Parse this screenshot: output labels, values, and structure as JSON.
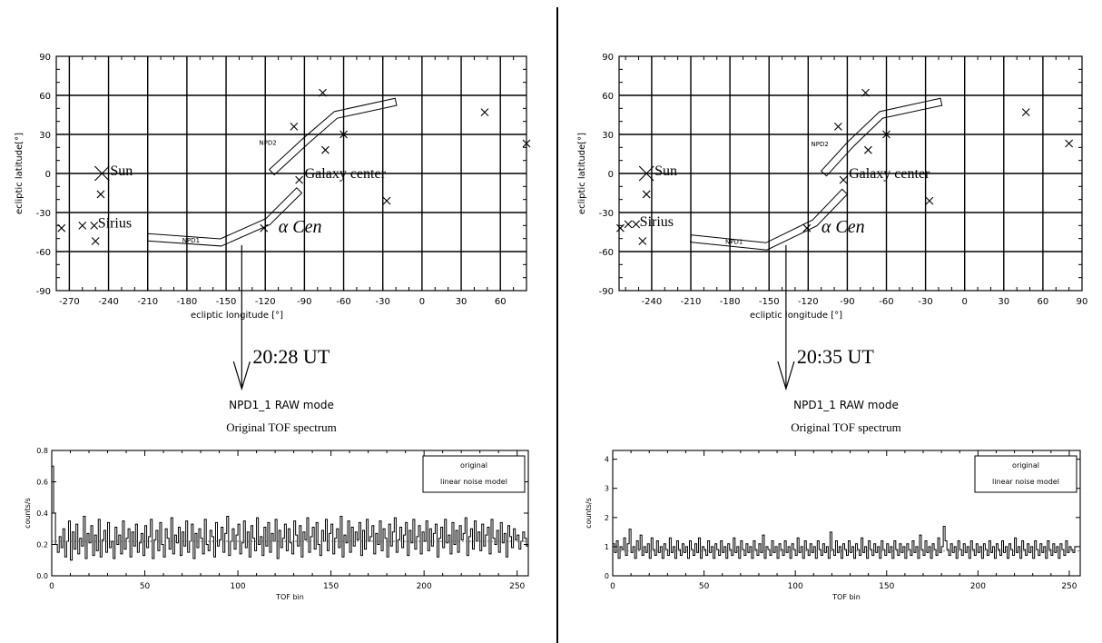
{
  "chart_data": [
    {
      "type": "scatter",
      "panel": "left",
      "xlabel": "ecliptic longitude [°]",
      "ylabel": "ecliptic latitude[°]",
      "xlim": [
        -280,
        80
      ],
      "ylim": [
        -90,
        90
      ],
      "xticks": [
        "-270",
        "-240",
        "-210",
        "-180",
        "-150",
        "-120",
        "-90",
        "-60",
        "-30",
        "0",
        "30",
        "60"
      ],
      "yticks": [
        "90",
        "60",
        "30",
        "0",
        "-30",
        "-60",
        "-90"
      ],
      "grid": true,
      "sun": {
        "label": "Sun",
        "x": -245,
        "y": 0
      },
      "sirius": {
        "label": "Sirius",
        "x": -251,
        "y": -40
      },
      "galaxy": {
        "label": "Galaxy center",
        "x": -94,
        "y": -5
      },
      "acen": {
        "label": "α Cen",
        "x": -121,
        "y": -42
      },
      "stars": [
        {
          "x": -246,
          "y": -16
        },
        {
          "x": -250,
          "y": -52
        },
        {
          "x": -260,
          "y": -40
        },
        {
          "x": -276,
          "y": -42
        },
        {
          "x": -98,
          "y": 36
        },
        {
          "x": -76,
          "y": 62
        },
        {
          "x": -74,
          "y": 18
        },
        {
          "x": -60,
          "y": 30
        },
        {
          "x": -27,
          "y": -21
        },
        {
          "x": 48,
          "y": 47
        },
        {
          "x": 80,
          "y": 23
        }
      ],
      "npd1": {
        "label": "NPD1",
        "line_x": -138,
        "path": [
          [
            -210,
            -49
          ],
          [
            -154,
            -53
          ],
          [
            -118,
            -37
          ],
          [
            -94,
            -13
          ]
        ]
      },
      "npd2": {
        "label": "NPD2",
        "path": [
          [
            -115,
            1
          ],
          [
            -89,
            25
          ],
          [
            -66,
            45
          ],
          [
            -20,
            55
          ]
        ]
      },
      "time_label": "20:28 UT"
    },
    {
      "type": "scatter",
      "panel": "right",
      "xlabel": "ecliptic longitude [°]",
      "ylabel": "ecliptic latitude[°]",
      "xlim": [
        -265,
        90
      ],
      "ylim": [
        -90,
        90
      ],
      "xticks": [
        "-240",
        "-210",
        "-180",
        "-150",
        "-120",
        "-90",
        "-60",
        "-30",
        "0",
        "30",
        "60",
        "90"
      ],
      "yticks": [
        "90",
        "60",
        "30",
        "0",
        "-30",
        "-60",
        "-90"
      ],
      "grid": true,
      "sun": {
        "label": "Sun",
        "x": -244,
        "y": 0
      },
      "sirius": {
        "label": "Sirius",
        "x": -252,
        "y": -39
      },
      "galaxy": {
        "label": "Galaxy center",
        "x": -93,
        "y": -5
      },
      "acen": {
        "label": "α Cen",
        "x": -121,
        "y": -42
      },
      "stars": [
        {
          "x": -244,
          "y": -16
        },
        {
          "x": -247,
          "y": -52
        },
        {
          "x": -258,
          "y": -39
        },
        {
          "x": -264,
          "y": -42
        },
        {
          "x": -97,
          "y": 36
        },
        {
          "x": -76,
          "y": 62
        },
        {
          "x": -74,
          "y": 18
        },
        {
          "x": -60,
          "y": 30
        },
        {
          "x": -27,
          "y": -21
        },
        {
          "x": 47,
          "y": 47
        },
        {
          "x": 80,
          "y": 23
        }
      ],
      "npd1": {
        "label": "NPD1",
        "line_x": -137,
        "path": [
          [
            -210,
            -50
          ],
          [
            -152,
            -56
          ],
          [
            -115,
            -38
          ],
          [
            -92,
            -14
          ]
        ]
      },
      "npd2": {
        "label": "NPD2",
        "path": [
          [
            -108,
            0
          ],
          [
            -87,
            23
          ],
          [
            -64,
            45
          ],
          [
            -18,
            55
          ]
        ]
      },
      "time_label": "20:35 UT"
    },
    {
      "type": "line",
      "panel": "left-bottom",
      "mode_title": "NPD1_1 RAW mode",
      "title": "Original TOF spectrum",
      "xlabel": "TOF bin",
      "ylabel": "counts/s",
      "xlim": [
        0,
        256
      ],
      "ylim": [
        0,
        0.8
      ],
      "xticks": [
        "0",
        "50",
        "100",
        "150",
        "200",
        "250"
      ],
      "yticks": [
        "0.0",
        "0.2",
        "0.4",
        "0.6",
        "0.8"
      ],
      "legend": [
        "original",
        "linear noise model"
      ],
      "legend_position": "top-right",
      "series": [
        {
          "name": "original",
          "values": [
            0.7,
            0.4,
            0.2,
            0.15,
            0.25,
            0.18,
            0.3,
            0.12,
            0.22,
            0.35,
            0.1,
            0.28,
            0.17,
            0.33,
            0.14,
            0.24,
            0.19,
            0.38,
            0.11,
            0.27,
            0.21,
            0.32,
            0.13,
            0.26,
            0.16,
            0.36,
            0.12,
            0.23,
            0.29,
            0.15,
            0.34,
            0.18,
            0.22,
            0.11,
            0.31,
            0.2,
            0.26,
            0.14,
            0.35,
            0.17,
            0.24,
            0.3,
            0.12,
            0.28,
            0.19,
            0.33,
            0.15,
            0.21,
            0.27,
            0.13,
            0.32,
            0.18,
            0.25,
            0.36,
            0.11,
            0.23,
            0.29,
            0.16,
            0.34,
            0.2,
            0.12,
            0.3,
            0.24,
            0.17,
            0.37,
            0.14,
            0.26,
            0.21,
            0.31,
            0.13,
            0.28,
            0.19,
            0.35,
            0.15,
            0.22,
            0.33,
            0.11,
            0.27,
            0.18,
            0.3,
            0.24,
            0.14,
            0.36,
            0.2,
            0.16,
            0.29,
            0.25,
            0.12,
            0.34,
            0.19,
            0.23,
            0.31,
            0.15,
            0.27,
            0.38,
            0.13,
            0.22,
            0.3,
            0.17,
            0.26,
            0.33,
            0.14,
            0.21,
            0.35,
            0.18,
            0.28,
            0.12,
            0.32,
            0.24,
            0.16,
            0.37,
            0.2,
            0.25,
            0.13,
            0.31,
            0.19,
            0.34,
            0.15,
            0.27,
            0.22,
            0.36,
            0.11,
            0.29,
            0.18,
            0.24,
            0.33,
            0.16,
            0.3,
            0.21,
            0.14,
            0.35,
            0.26,
            0.19,
            0.32,
            0.12,
            0.28,
            0.23,
            0.37,
            0.15,
            0.25,
            0.31,
            0.17,
            0.34,
            0.2,
            0.13,
            0.29,
            0.22,
            0.36,
            0.16,
            0.27,
            0.33,
            0.14,
            0.24,
            0.3,
            0.18,
            0.38,
            0.12,
            0.26,
            0.21,
            0.35,
            0.15,
            0.31,
            0.19,
            0.28,
            0.23,
            0.34,
            0.13,
            0.29,
            0.17,
            0.36,
            0.22,
            0.25,
            0.32,
            0.14,
            0.27,
            0.2,
            0.35,
            0.16,
            0.3,
            0.24,
            0.12,
            0.33,
            0.19,
            0.28,
            0.37,
            0.15,
            0.23,
            0.31,
            0.18,
            0.26,
            0.34,
            0.13,
            0.29,
            0.21,
            0.36,
            0.17,
            0.25,
            0.32,
            0.14,
            0.28,
            0.22,
            0.35,
            0.16,
            0.3,
            0.19,
            0.27,
            0.33,
            0.12,
            0.24,
            0.31,
            0.18,
            0.36,
            0.21,
            0.26,
            0.14,
            0.34,
            0.2,
            0.29,
            0.15,
            0.32,
            0.23,
            0.27,
            0.37,
            0.13,
            0.25,
            0.3,
            0.17,
            0.35,
            0.22,
            0.28,
            0.16,
            0.33,
            0.19,
            0.26,
            0.31,
            0.14,
            0.36,
            0.24,
            0.2,
            0.29,
            0.15,
            0.34,
            0.21,
            0.27,
            0.12,
            0.32,
            0.25,
            0.18,
            0.3,
            0.23,
            0.26,
            0.17,
            0.22,
            0.28,
            0.24,
            0.19
          ]
        },
        {
          "name": "linear noise model",
          "values": [
            0.22,
            0.22
          ]
        }
      ]
    },
    {
      "type": "line",
      "panel": "right-bottom",
      "mode_title": "NPD1_1 RAW mode",
      "title": "Original TOF spectrum",
      "xlabel": "TOF bin",
      "ylabel": "counts/s",
      "xlim": [
        0,
        256
      ],
      "ylim": [
        0,
        4.3
      ],
      "xticks": [
        "0",
        "50",
        "100",
        "150",
        "200",
        "250"
      ],
      "yticks": [
        "0",
        "1",
        "2",
        "3",
        "4"
      ],
      "legend": [
        "original",
        "linear noise model"
      ],
      "legend_position": "top-right",
      "series": [
        {
          "name": "original",
          "values": [
            1.1,
            0.8,
            1.2,
            0.6,
            1.0,
            0.9,
            1.3,
            0.7,
            1.1,
            1.6,
            0.8,
            1.0,
            0.6,
            1.2,
            0.9,
            1.4,
            0.7,
            1.0,
            0.8,
            1.1,
            0.6,
            1.3,
            0.9,
            0.7,
            1.2,
            0.8,
            1.0,
            0.6,
            1.1,
            0.9,
            0.7,
            1.3,
            0.8,
            1.0,
            0.6,
            1.2,
            0.9,
            0.7,
            1.1,
            0.8,
            1.0,
            0.6,
            1.2,
            0.9,
            0.7,
            1.1,
            0.8,
            1.3,
            0.6,
            1.0,
            0.9,
            0.7,
            1.2,
            0.8,
            1.0,
            0.6,
            1.1,
            0.9,
            0.7,
            1.2,
            0.8,
            1.0,
            0.6,
            1.1,
            0.9,
            0.7,
            1.3,
            0.8,
            1.0,
            0.6,
            1.2,
            0.9,
            0.7,
            1.1,
            0.8,
            1.0,
            0.6,
            1.2,
            0.9,
            0.7,
            1.1,
            0.8,
            1.4,
            0.6,
            1.0,
            0.9,
            0.7,
            1.2,
            0.8,
            1.0,
            0.6,
            1.1,
            0.9,
            0.7,
            1.2,
            0.8,
            1.0,
            0.6,
            1.1,
            0.9,
            0.7,
            1.3,
            0.8,
            1.0,
            0.6,
            1.2,
            0.9,
            0.7,
            1.1,
            0.8,
            1.0,
            0.6,
            1.2,
            0.9,
            0.7,
            1.1,
            0.8,
            1.0,
            0.6,
            1.5,
            0.9,
            0.7,
            1.2,
            0.8,
            1.0,
            0.6,
            1.1,
            0.9,
            0.7,
            1.2,
            0.8,
            1.0,
            0.6,
            1.1,
            0.9,
            0.7,
            1.3,
            0.8,
            1.0,
            0.6,
            1.2,
            0.9,
            0.7,
            1.1,
            0.8,
            1.0,
            0.6,
            1.2,
            0.9,
            0.7,
            1.1,
            0.8,
            1.0,
            0.6,
            1.2,
            0.9,
            0.7,
            1.1,
            0.8,
            1.0,
            0.6,
            1.1,
            0.9,
            0.7,
            1.2,
            0.8,
            1.0,
            0.6,
            1.4,
            0.9,
            0.7,
            1.2,
            0.8,
            1.0,
            0.6,
            1.1,
            0.9,
            0.7,
            1.3,
            0.8,
            1.0,
            1.7,
            1.2,
            0.9,
            0.7,
            1.1,
            0.8,
            1.0,
            0.6,
            1.2,
            0.9,
            0.7,
            1.1,
            0.8,
            1.0,
            0.6,
            1.2,
            0.9,
            0.7,
            1.1,
            0.8,
            1.0,
            0.6,
            1.1,
            0.9,
            0.7,
            1.2,
            0.8,
            1.0,
            0.6,
            1.1,
            0.9,
            0.7,
            1.2,
            0.8,
            1.0,
            0.6,
            1.1,
            0.9,
            0.7,
            1.3,
            0.8,
            1.0,
            0.6,
            1.2,
            0.9,
            0.7,
            1.1,
            0.8,
            1.0,
            0.6,
            1.2,
            0.9,
            0.7,
            1.1,
            0.8,
            1.0,
            0.6,
            1.2,
            0.9,
            0.7,
            1.1,
            0.8,
            1.0,
            0.6,
            1.1,
            0.9,
            0.7,
            1.2,
            0.8,
            1.0,
            0.9,
            0.8,
            1.0
          ]
        },
        {
          "name": "linear noise model",
          "values": [
            0.85,
            0.85
          ]
        }
      ]
    }
  ]
}
